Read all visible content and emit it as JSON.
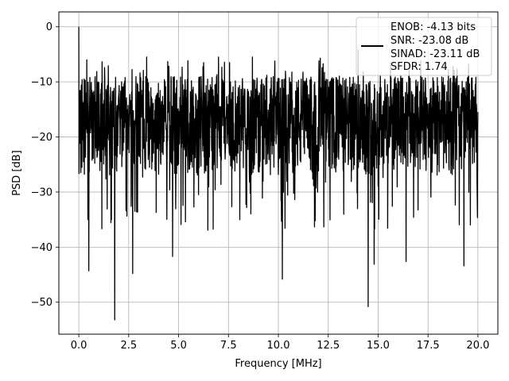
{
  "chart_data": {
    "type": "line",
    "xlabel": "Frequency [MHz]",
    "ylabel": "PSD [dB]",
    "xlim": [
      -1.0,
      21.0
    ],
    "ylim": [
      -55.8,
      2.7
    ],
    "xticks": [
      0.0,
      2.5,
      5.0,
      7.5,
      10.0,
      12.5,
      15.0,
      17.5,
      20.0
    ],
    "xtick_labels": [
      "0.0",
      "2.5",
      "5.0",
      "7.5",
      "10.0",
      "12.5",
      "15.0",
      "17.5",
      "20.0"
    ],
    "yticks": [
      0,
      -10,
      -20,
      -30,
      -40,
      -50
    ],
    "ytick_labels": [
      "0",
      "−10",
      "−20",
      "−30",
      "−40",
      "−50"
    ],
    "grid": true,
    "legend_position": "top-right",
    "legend": [
      "ENOB: -4.13 bits",
      "SNR: -23.08 dB",
      "SINAD: -23.11 dB",
      "SFDR: 1.74"
    ],
    "series": [
      {
        "color": "#000000",
        "description": "dense noise floor spectrum from 0 to 20 MHz, fluctuating mostly between -27 dB and -9 dB",
        "x_range": [
          0.0,
          20.0
        ],
        "typical_range": [
          -27,
          -9
        ],
        "peaks": [
          {
            "x": 0.0,
            "y": 0.0
          },
          {
            "x": 0.4,
            "y": -6
          },
          {
            "x": 3.4,
            "y": -5.5
          },
          {
            "x": 7.0,
            "y": -5.5
          },
          {
            "x": 8.7,
            "y": -5.5
          },
          {
            "x": 12.1,
            "y": -5.7
          },
          {
            "x": 14.0,
            "y": -4.3
          }
        ],
        "dips": [
          {
            "x": 0.5,
            "y": -44.3
          },
          {
            "x": 1.8,
            "y": -53.2
          },
          {
            "x": 2.7,
            "y": -44.8
          },
          {
            "x": 4.7,
            "y": -41.7
          },
          {
            "x": 10.2,
            "y": -45.8
          },
          {
            "x": 14.5,
            "y": -50.8
          },
          {
            "x": 14.8,
            "y": -43.1
          },
          {
            "x": 16.4,
            "y": -42.6
          },
          {
            "x": 19.3,
            "y": -43.4
          }
        ]
      }
    ]
  }
}
